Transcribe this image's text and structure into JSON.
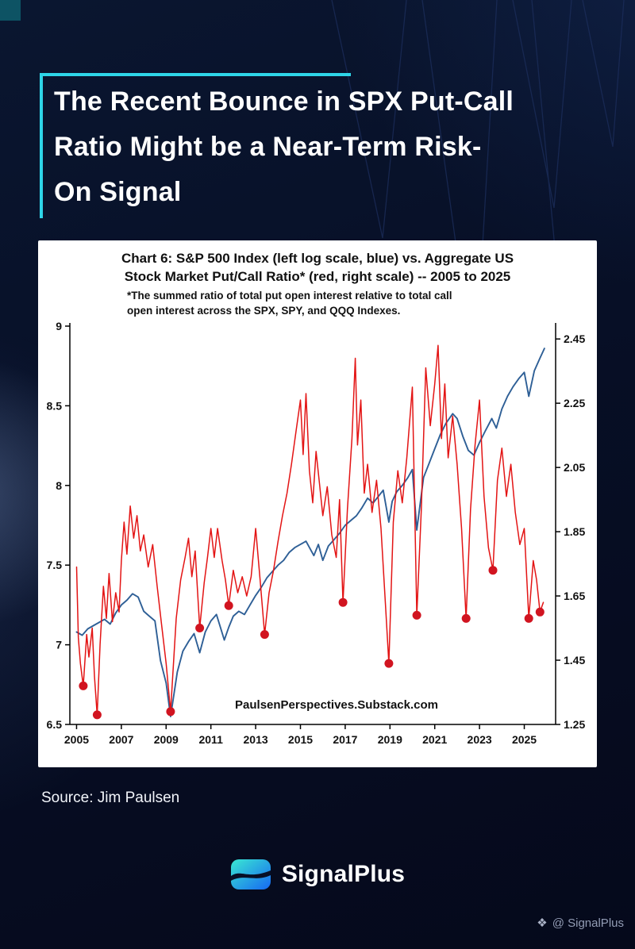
{
  "page": {
    "title_lines": [
      "The Recent Bounce in SPX Put-Call",
      "Ratio Might be a Near-Term Risk-",
      "On Signal"
    ],
    "source": "Source: Jim Paulsen",
    "brand": "SignalPlus",
    "watermark_icon": "❖",
    "watermark_text": "@ SignalPlus",
    "accent_color": "#2ed5e8",
    "background_color": "#070f26"
  },
  "chart_data": {
    "type": "line",
    "title_lines": [
      "Chart 6: S&P 500 Index (left log scale, blue) vs. Aggregate US",
      "Stock Market Put/Call Ratio* (red, right scale) -- 2005 to 2025"
    ],
    "subtitle_lines": [
      "*The summed ratio of total put open interest relative to total call",
      "open interest across the SPX, SPY, and QQQ Indexes."
    ],
    "inner_label": "PaulsenPerspectives.Substack.com",
    "grid": false,
    "legend": "none",
    "x_range": [
      2004.7,
      2026.4
    ],
    "x_ticks": [
      2005,
      2007,
      2009,
      2011,
      2013,
      2015,
      2017,
      2019,
      2021,
      2023,
      2025
    ],
    "x_tick_labels": [
      "2005",
      "2007",
      "2009",
      "2011",
      "2013",
      "2015",
      "2017",
      "2019",
      "2021",
      "2023",
      "2025"
    ],
    "left_axis": {
      "title": "S&P 500 Index (natural log scale)",
      "range": [
        6.5,
        9.0
      ],
      "ticks": [
        6.5,
        7,
        7.5,
        8,
        8.5,
        9
      ],
      "labels": [
        "6.5",
        "7",
        "7.5",
        "8",
        "8.5",
        "9"
      ]
    },
    "right_axis": {
      "title": "Aggregate US Stock Market Put/Call Ratio",
      "range": [
        1.25,
        2.49
      ],
      "ticks": [
        1.25,
        1.45,
        1.65,
        1.85,
        2.05,
        2.25,
        2.45
      ],
      "labels": [
        "1.25",
        "1.45",
        "1.65",
        "1.85",
        "2.05",
        "2.25",
        "2.45"
      ]
    },
    "series": [
      {
        "name": "S&P 500 Index (left log scale, blue)",
        "axis": "left",
        "color": "#2e5f96",
        "width": 1.9,
        "points": [
          [
            2005.0,
            7.08
          ],
          [
            2005.25,
            7.06
          ],
          [
            2005.5,
            7.1
          ],
          [
            2005.75,
            7.12
          ],
          [
            2006.0,
            7.14
          ],
          [
            2006.25,
            7.16
          ],
          [
            2006.5,
            7.13
          ],
          [
            2006.75,
            7.2
          ],
          [
            2007.0,
            7.25
          ],
          [
            2007.25,
            7.28
          ],
          [
            2007.5,
            7.32
          ],
          [
            2007.75,
            7.3
          ],
          [
            2008.0,
            7.21
          ],
          [
            2008.25,
            7.18
          ],
          [
            2008.5,
            7.15
          ],
          [
            2008.75,
            6.9
          ],
          [
            2009.0,
            6.76
          ],
          [
            2009.2,
            6.55
          ],
          [
            2009.5,
            6.83
          ],
          [
            2009.75,
            6.96
          ],
          [
            2010.0,
            7.02
          ],
          [
            2010.25,
            7.07
          ],
          [
            2010.5,
            6.95
          ],
          [
            2010.75,
            7.08
          ],
          [
            2011.0,
            7.15
          ],
          [
            2011.25,
            7.19
          ],
          [
            2011.6,
            7.03
          ],
          [
            2011.8,
            7.11
          ],
          [
            2012.0,
            7.18
          ],
          [
            2012.25,
            7.21
          ],
          [
            2012.5,
            7.19
          ],
          [
            2012.75,
            7.25
          ],
          [
            2013.0,
            7.31
          ],
          [
            2013.25,
            7.36
          ],
          [
            2013.5,
            7.42
          ],
          [
            2013.75,
            7.46
          ],
          [
            2014.0,
            7.5
          ],
          [
            2014.25,
            7.53
          ],
          [
            2014.5,
            7.58
          ],
          [
            2014.75,
            7.61
          ],
          [
            2015.0,
            7.63
          ],
          [
            2015.25,
            7.65
          ],
          [
            2015.6,
            7.56
          ],
          [
            2015.8,
            7.63
          ],
          [
            2016.0,
            7.53
          ],
          [
            2016.25,
            7.62
          ],
          [
            2016.5,
            7.66
          ],
          [
            2016.75,
            7.7
          ],
          [
            2017.0,
            7.75
          ],
          [
            2017.25,
            7.78
          ],
          [
            2017.5,
            7.81
          ],
          [
            2017.75,
            7.86
          ],
          [
            2018.0,
            7.92
          ],
          [
            2018.25,
            7.89
          ],
          [
            2018.7,
            7.97
          ],
          [
            2018.95,
            7.77
          ],
          [
            2019.1,
            7.9
          ],
          [
            2019.3,
            7.96
          ],
          [
            2019.55,
            8.0
          ],
          [
            2019.8,
            8.05
          ],
          [
            2020.0,
            8.1
          ],
          [
            2020.2,
            7.72
          ],
          [
            2020.5,
            8.05
          ],
          [
            2020.75,
            8.14
          ],
          [
            2021.0,
            8.23
          ],
          [
            2021.25,
            8.32
          ],
          [
            2021.5,
            8.39
          ],
          [
            2021.8,
            8.45
          ],
          [
            2022.0,
            8.42
          ],
          [
            2022.25,
            8.31
          ],
          [
            2022.5,
            8.22
          ],
          [
            2022.75,
            8.19
          ],
          [
            2023.0,
            8.27
          ],
          [
            2023.25,
            8.34
          ],
          [
            2023.55,
            8.42
          ],
          [
            2023.75,
            8.36
          ],
          [
            2024.0,
            8.48
          ],
          [
            2024.25,
            8.56
          ],
          [
            2024.5,
            8.62
          ],
          [
            2024.75,
            8.67
          ],
          [
            2025.0,
            8.71
          ],
          [
            2025.2,
            8.56
          ],
          [
            2025.45,
            8.72
          ],
          [
            2025.7,
            8.8
          ],
          [
            2025.9,
            8.86
          ]
        ]
      },
      {
        "name": "Aggregate US Stock Market Put/Call Ratio (red, right scale)",
        "axis": "right",
        "color": "#e31414",
        "width": 1.5,
        "marker_color": "#d11420",
        "marker_radius": 5.5,
        "points": [
          [
            2005.0,
            1.74
          ],
          [
            2005.08,
            1.52
          ],
          [
            2005.17,
            1.44
          ],
          [
            2005.3,
            1.37
          ],
          [
            2005.45,
            1.53
          ],
          [
            2005.55,
            1.46
          ],
          [
            2005.7,
            1.55
          ],
          [
            2005.8,
            1.4
          ],
          [
            2005.92,
            1.28
          ],
          [
            2006.05,
            1.5
          ],
          [
            2006.2,
            1.68
          ],
          [
            2006.33,
            1.58
          ],
          [
            2006.45,
            1.72
          ],
          [
            2006.6,
            1.57
          ],
          [
            2006.75,
            1.66
          ],
          [
            2006.9,
            1.6
          ],
          [
            2007.0,
            1.76
          ],
          [
            2007.12,
            1.88
          ],
          [
            2007.25,
            1.78
          ],
          [
            2007.4,
            1.93
          ],
          [
            2007.55,
            1.83
          ],
          [
            2007.7,
            1.9
          ],
          [
            2007.85,
            1.79
          ],
          [
            2008.0,
            1.84
          ],
          [
            2008.2,
            1.74
          ],
          [
            2008.4,
            1.81
          ],
          [
            2008.6,
            1.68
          ],
          [
            2008.8,
            1.56
          ],
          [
            2009.0,
            1.44
          ],
          [
            2009.2,
            1.29
          ],
          [
            2009.45,
            1.58
          ],
          [
            2009.65,
            1.7
          ],
          [
            2009.85,
            1.77
          ],
          [
            2010.0,
            1.83
          ],
          [
            2010.15,
            1.71
          ],
          [
            2010.3,
            1.79
          ],
          [
            2010.5,
            1.55
          ],
          [
            2010.7,
            1.69
          ],
          [
            2010.85,
            1.77
          ],
          [
            2011.0,
            1.86
          ],
          [
            2011.15,
            1.77
          ],
          [
            2011.3,
            1.86
          ],
          [
            2011.5,
            1.76
          ],
          [
            2011.65,
            1.7
          ],
          [
            2011.8,
            1.62
          ],
          [
            2012.0,
            1.73
          ],
          [
            2012.2,
            1.66
          ],
          [
            2012.4,
            1.71
          ],
          [
            2012.6,
            1.65
          ],
          [
            2012.8,
            1.71
          ],
          [
            2013.0,
            1.86
          ],
          [
            2013.2,
            1.7
          ],
          [
            2013.4,
            1.53
          ],
          [
            2013.6,
            1.66
          ],
          [
            2013.8,
            1.73
          ],
          [
            2014.0,
            1.82
          ],
          [
            2014.2,
            1.9
          ],
          [
            2014.4,
            1.97
          ],
          [
            2014.6,
            2.06
          ],
          [
            2014.8,
            2.16
          ],
          [
            2015.0,
            2.26
          ],
          [
            2015.12,
            2.09
          ],
          [
            2015.25,
            2.28
          ],
          [
            2015.4,
            2.04
          ],
          [
            2015.55,
            1.94
          ],
          [
            2015.7,
            2.1
          ],
          [
            2015.85,
            2.0
          ],
          [
            2016.0,
            1.9
          ],
          [
            2016.2,
            1.99
          ],
          [
            2016.4,
            1.84
          ],
          [
            2016.6,
            1.77
          ],
          [
            2016.75,
            1.95
          ],
          [
            2016.9,
            1.63
          ],
          [
            2017.1,
            1.92
          ],
          [
            2017.3,
            2.14
          ],
          [
            2017.45,
            2.39
          ],
          [
            2017.55,
            2.12
          ],
          [
            2017.7,
            2.26
          ],
          [
            2017.85,
            1.97
          ],
          [
            2018.0,
            2.06
          ],
          [
            2018.2,
            1.91
          ],
          [
            2018.4,
            2.01
          ],
          [
            2018.6,
            1.86
          ],
          [
            2018.8,
            1.62
          ],
          [
            2018.95,
            1.44
          ],
          [
            2019.15,
            1.88
          ],
          [
            2019.35,
            2.04
          ],
          [
            2019.55,
            1.94
          ],
          [
            2019.75,
            2.08
          ],
          [
            2020.0,
            2.3
          ],
          [
            2020.2,
            1.59
          ],
          [
            2020.4,
            1.92
          ],
          [
            2020.6,
            2.36
          ],
          [
            2020.8,
            2.18
          ],
          [
            2021.0,
            2.31
          ],
          [
            2021.15,
            2.43
          ],
          [
            2021.3,
            2.14
          ],
          [
            2021.45,
            2.31
          ],
          [
            2021.6,
            2.08
          ],
          [
            2021.8,
            2.21
          ],
          [
            2022.0,
            2.06
          ],
          [
            2022.2,
            1.86
          ],
          [
            2022.4,
            1.58
          ],
          [
            2022.6,
            1.92
          ],
          [
            2022.8,
            2.12
          ],
          [
            2023.0,
            2.26
          ],
          [
            2023.2,
            1.96
          ],
          [
            2023.4,
            1.8
          ],
          [
            2023.6,
            1.73
          ],
          [
            2023.8,
            2.01
          ],
          [
            2024.0,
            2.11
          ],
          [
            2024.2,
            1.96
          ],
          [
            2024.4,
            2.06
          ],
          [
            2024.6,
            1.91
          ],
          [
            2024.8,
            1.81
          ],
          [
            2025.0,
            1.86
          ],
          [
            2025.2,
            1.58
          ],
          [
            2025.4,
            1.76
          ],
          [
            2025.55,
            1.7
          ],
          [
            2025.7,
            1.6
          ],
          [
            2025.85,
            1.63
          ]
        ],
        "markers": [
          [
            2005.3,
            1.37
          ],
          [
            2005.92,
            1.28
          ],
          [
            2009.2,
            1.29
          ],
          [
            2010.5,
            1.55
          ],
          [
            2011.8,
            1.62
          ],
          [
            2013.4,
            1.53
          ],
          [
            2016.9,
            1.63
          ],
          [
            2018.95,
            1.44
          ],
          [
            2020.2,
            1.59
          ],
          [
            2022.4,
            1.58
          ],
          [
            2023.6,
            1.73
          ],
          [
            2025.2,
            1.58
          ],
          [
            2025.7,
            1.6
          ]
        ]
      }
    ]
  }
}
